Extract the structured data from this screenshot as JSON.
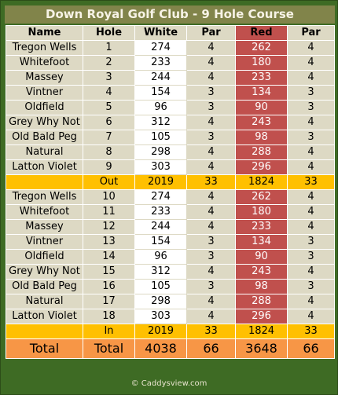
{
  "title": "Down Royal Golf Club - 9 Hole Course",
  "headers": {
    "name": "Name",
    "hole": "Hole",
    "white": "White",
    "par1": "Par",
    "red": "Red",
    "par2": "Par"
  },
  "rows": [
    {
      "name": "Tregon Wells",
      "hole": "1",
      "white": "274",
      "par1": "4",
      "red": "262",
      "par2": "4"
    },
    {
      "name": "Whitefoot",
      "hole": "2",
      "white": "233",
      "par1": "4",
      "red": "180",
      "par2": "4"
    },
    {
      "name": "Massey",
      "hole": "3",
      "white": "244",
      "par1": "4",
      "red": "233",
      "par2": "4"
    },
    {
      "name": "Vintner",
      "hole": "4",
      "white": "154",
      "par1": "3",
      "red": "134",
      "par2": "3"
    },
    {
      "name": "Oldfield",
      "hole": "5",
      "white": "96",
      "par1": "3",
      "red": "90",
      "par2": "3"
    },
    {
      "name": "Grey Why Not",
      "hole": "6",
      "white": "312",
      "par1": "4",
      "red": "243",
      "par2": "4"
    },
    {
      "name": "Old Bald Peg",
      "hole": "7",
      "white": "105",
      "par1": "3",
      "red": "98",
      "par2": "3"
    },
    {
      "name": "Natural",
      "hole": "8",
      "white": "298",
      "par1": "4",
      "red": "288",
      "par2": "4"
    },
    {
      "name": "Latton Violet",
      "hole": "9",
      "white": "303",
      "par1": "4",
      "red": "296",
      "par2": "4"
    },
    {
      "name": "Tregon Wells",
      "hole": "10",
      "white": "274",
      "par1": "4",
      "red": "262",
      "par2": "4"
    },
    {
      "name": "Whitefoot",
      "hole": "11",
      "white": "233",
      "par1": "4",
      "red": "180",
      "par2": "4"
    },
    {
      "name": "Massey",
      "hole": "12",
      "white": "244",
      "par1": "4",
      "red": "233",
      "par2": "4"
    },
    {
      "name": "Vintner",
      "hole": "13",
      "white": "154",
      "par1": "3",
      "red": "134",
      "par2": "3"
    },
    {
      "name": "Oldfield",
      "hole": "14",
      "white": "96",
      "par1": "3",
      "red": "90",
      "par2": "3"
    },
    {
      "name": "Grey Why Not",
      "hole": "15",
      "white": "312",
      "par1": "4",
      "red": "243",
      "par2": "4"
    },
    {
      "name": "Old Bald Peg",
      "hole": "16",
      "white": "105",
      "par1": "3",
      "red": "98",
      "par2": "3"
    },
    {
      "name": "Natural",
      "hole": "17",
      "white": "298",
      "par1": "4",
      "red": "288",
      "par2": "4"
    },
    {
      "name": "Latton Violet",
      "hole": "18",
      "white": "303",
      "par1": "4",
      "red": "296",
      "par2": "4"
    }
  ],
  "out": {
    "name": "",
    "hole": "Out",
    "white": "2019",
    "par1": "33",
    "red": "1824",
    "par2": "33"
  },
  "in": {
    "name": "",
    "hole": "In",
    "white": "2019",
    "par1": "33",
    "red": "1824",
    "par2": "33"
  },
  "total": {
    "name": "Total",
    "hole": "Total",
    "white": "4038",
    "par1": "66",
    "red": "3648",
    "par2": "66"
  },
  "footer": "© Caddysview.com",
  "colors": {
    "background": "#3e6b24",
    "title_bar": "#81844a",
    "cell": "#ddd9c4",
    "red_tee": "#c0504d",
    "subtotal": "#ffc000",
    "total": "#f79646"
  }
}
